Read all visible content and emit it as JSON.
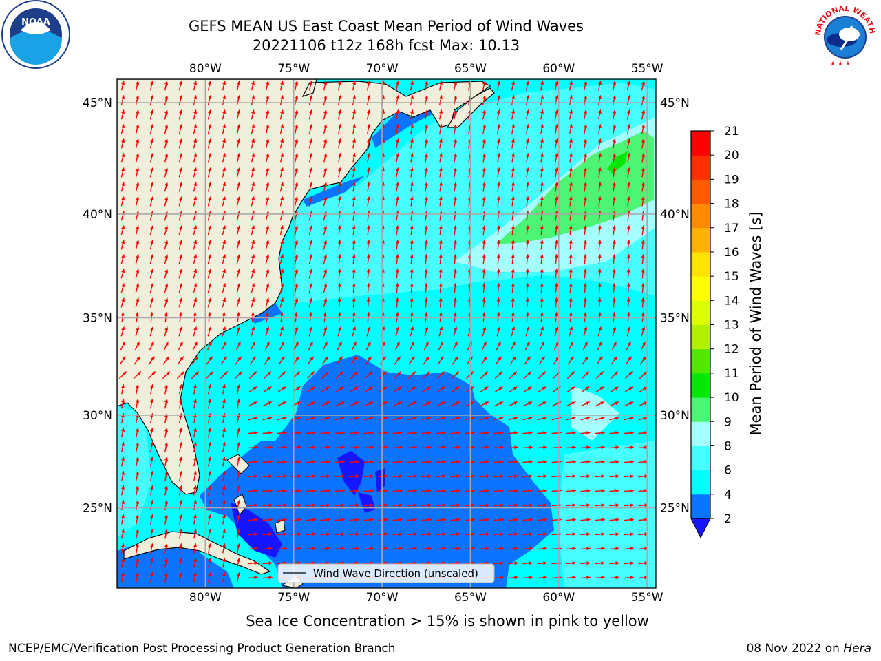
{
  "title": {
    "line1": "GEFS MEAN US East Coast Mean Period of Wind Waves",
    "line2": "20221106 t12z 168h fcst   Max: 10.13"
  },
  "subtitle": "Sea Ice Concentration > 15% is shown in pink to yellow",
  "footer": {
    "left": "NCEP/EMC/Verification Post Processing Product Generation Branch",
    "right_date": "08 Nov 2022 on",
    "right_machine": "Hera"
  },
  "logos": {
    "noaa_text": "NOAA",
    "nws_text": "NATIONAL WEATHER SERVICE"
  },
  "map": {
    "lon_range": [
      -85,
      -54.5
    ],
    "lat_range": [
      20.5,
      46
    ],
    "lon_ticks": [
      {
        "value": -80,
        "label": "80°W"
      },
      {
        "value": -75,
        "label": "75°W"
      },
      {
        "value": -70,
        "label": "70°W"
      },
      {
        "value": -65,
        "label": "65°W"
      },
      {
        "value": -60,
        "label": "60°W"
      },
      {
        "value": -55,
        "label": "55°W"
      }
    ],
    "lat_ticks": [
      {
        "value": 25,
        "label": "25°N"
      },
      {
        "value": 30,
        "label": "30°N"
      },
      {
        "value": 35,
        "label": "35°N"
      },
      {
        "value": 40,
        "label": "40°N"
      },
      {
        "value": 45,
        "label": "45°N"
      }
    ],
    "legend_label": "Wind Wave Direction (unscaled)",
    "arrow_color": "#ff0000",
    "land_color": "#efefdc",
    "grid": true
  },
  "colorbar": {
    "label": "Mean Period of Wind Waves [s]",
    "ticks": [
      "2",
      "4",
      "6",
      "8",
      "9",
      "10",
      "11",
      "12",
      "13",
      "14",
      "15",
      "16",
      "17",
      "18",
      "19",
      "20",
      "21"
    ],
    "colors": [
      "#0a73ff",
      "#00ffff",
      "#48ffff",
      "#a6ffff",
      "#4cf574",
      "#08e608",
      "#52e600",
      "#b3f000",
      "#dbff00",
      "#ffff00",
      "#ffe400",
      "#ffb300",
      "#ff8c00",
      "#ff5a00",
      "#ff2e00",
      "#ff0000"
    ],
    "under_color": "#1515ff"
  }
}
